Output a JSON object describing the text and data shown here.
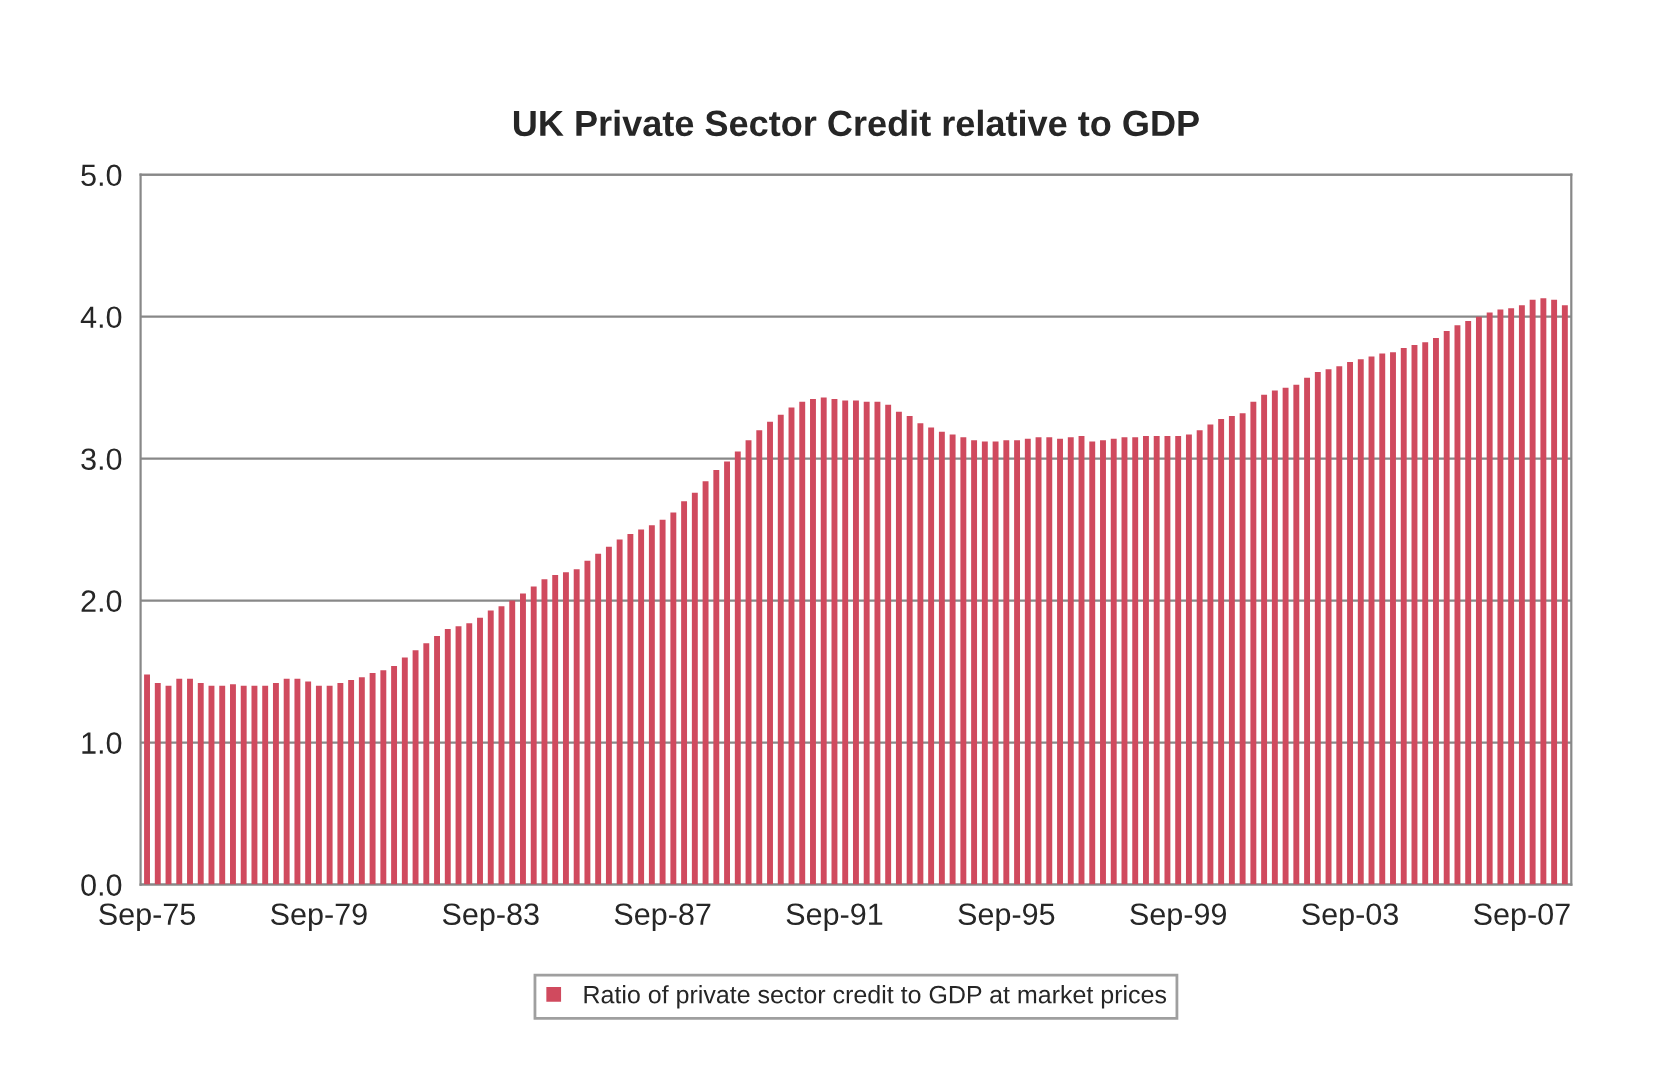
{
  "chart_data": {
    "type": "bar",
    "title": "UK Private Sector Credit relative to GDP",
    "categories": [
      "Sep-75",
      null,
      null,
      null,
      null,
      null,
      null,
      null,
      null,
      null,
      null,
      null,
      null,
      null,
      null,
      null,
      "Sep-79",
      null,
      null,
      null,
      null,
      null,
      null,
      null,
      null,
      null,
      null,
      null,
      null,
      null,
      null,
      null,
      "Sep-83",
      null,
      null,
      null,
      null,
      null,
      null,
      null,
      null,
      null,
      null,
      null,
      null,
      null,
      null,
      null,
      "Sep-87",
      null,
      null,
      null,
      null,
      null,
      null,
      null,
      null,
      null,
      null,
      null,
      null,
      null,
      null,
      null,
      "Sep-91",
      null,
      null,
      null,
      null,
      null,
      null,
      null,
      null,
      null,
      null,
      null,
      null,
      null,
      null,
      null,
      "Sep-95",
      null,
      null,
      null,
      null,
      null,
      null,
      null,
      null,
      null,
      null,
      null,
      null,
      null,
      null,
      null,
      "Sep-99",
      null,
      null,
      null,
      null,
      null,
      null,
      null,
      null,
      null,
      null,
      null,
      null,
      null,
      null,
      null,
      "Sep-03",
      null,
      null,
      null,
      null,
      null,
      null,
      null,
      null,
      null,
      null,
      null,
      null,
      null,
      null,
      null,
      "Sep-07",
      null,
      null,
      null,
      null
    ],
    "series": [
      {
        "name": "Ratio of private sector credit to GDP at market prices",
        "color": "#d04a5e",
        "values": [
          1.48,
          1.42,
          1.4,
          1.45,
          1.45,
          1.42,
          1.4,
          1.4,
          1.41,
          1.4,
          1.4,
          1.4,
          1.42,
          1.45,
          1.45,
          1.43,
          1.4,
          1.4,
          1.42,
          1.44,
          1.46,
          1.49,
          1.51,
          1.54,
          1.6,
          1.65,
          1.7,
          1.75,
          1.8,
          1.82,
          1.84,
          1.88,
          1.93,
          1.96,
          2.0,
          2.05,
          2.1,
          2.15,
          2.18,
          2.2,
          2.22,
          2.28,
          2.33,
          2.38,
          2.43,
          2.47,
          2.5,
          2.53,
          2.57,
          2.62,
          2.7,
          2.76,
          2.84,
          2.92,
          2.98,
          3.05,
          3.13,
          3.2,
          3.26,
          3.31,
          3.36,
          3.4,
          3.42,
          3.43,
          3.42,
          3.41,
          3.41,
          3.4,
          3.4,
          3.38,
          3.33,
          3.3,
          3.25,
          3.22,
          3.19,
          3.17,
          3.15,
          3.13,
          3.12,
          3.12,
          3.13,
          3.13,
          3.14,
          3.15,
          3.15,
          3.14,
          3.15,
          3.16,
          3.12,
          3.13,
          3.14,
          3.15,
          3.15,
          3.16,
          3.16,
          3.16,
          3.16,
          3.17,
          3.2,
          3.24,
          3.28,
          3.3,
          3.32,
          3.4,
          3.45,
          3.48,
          3.5,
          3.52,
          3.57,
          3.61,
          3.63,
          3.65,
          3.68,
          3.7,
          3.72,
          3.74,
          3.75,
          3.78,
          3.8,
          3.82,
          3.85,
          3.9,
          3.94,
          3.97,
          4.0,
          4.03,
          4.05,
          4.06,
          4.08,
          4.12,
          4.13,
          4.12,
          4.08
        ]
      }
    ],
    "ylim": [
      0,
      5
    ],
    "yticks": [
      {
        "value": 0,
        "label": "0.0"
      },
      {
        "value": 1,
        "label": "1.0"
      },
      {
        "value": 2,
        "label": "2.0"
      },
      {
        "value": 3,
        "label": "3.0"
      },
      {
        "value": 4,
        "label": "4.0"
      },
      {
        "value": 5,
        "label": "5.0"
      }
    ],
    "grid": "y",
    "legend": "bottom"
  }
}
